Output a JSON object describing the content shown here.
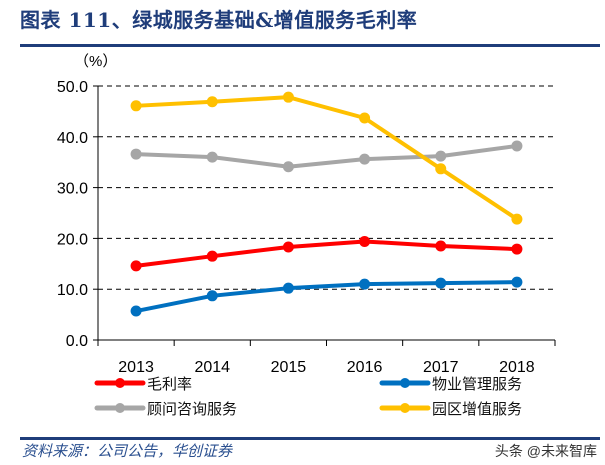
{
  "title": "图表 111、绿城服务基础&增值服务毛利率",
  "source": "资料来源：公司公告，华创证券",
  "watermark": "头条 @未来智库",
  "chart_data": {
    "type": "line",
    "title": "图表 111、绿城服务基础&增值服务毛利率",
    "ylabel": "（%）",
    "categories": [
      "2013",
      "2014",
      "2015",
      "2016",
      "2017",
      "2018"
    ],
    "ylim": [
      0,
      50
    ],
    "yticks": [
      "0.0",
      "10.0",
      "20.0",
      "30.0",
      "40.0",
      "50.0"
    ],
    "grid": "horizontal dashed",
    "legend": "bottom",
    "series": [
      {
        "name": "毛利率",
        "color": "#ff0000",
        "values": [
          14.6,
          16.5,
          18.3,
          19.4,
          18.5,
          17.9
        ]
      },
      {
        "name": "物业管理服务",
        "color": "#0070c0",
        "values": [
          5.7,
          8.7,
          10.2,
          11.0,
          11.2,
          11.4
        ]
      },
      {
        "name": "顾问咨询服务",
        "color": "#a6a6a6",
        "values": [
          36.6,
          36.0,
          34.1,
          35.6,
          36.2,
          38.2
        ]
      },
      {
        "name": "园区增值服务",
        "color": "#ffc000",
        "values": [
          46.1,
          46.9,
          47.8,
          43.7,
          33.7,
          23.8
        ]
      }
    ]
  }
}
